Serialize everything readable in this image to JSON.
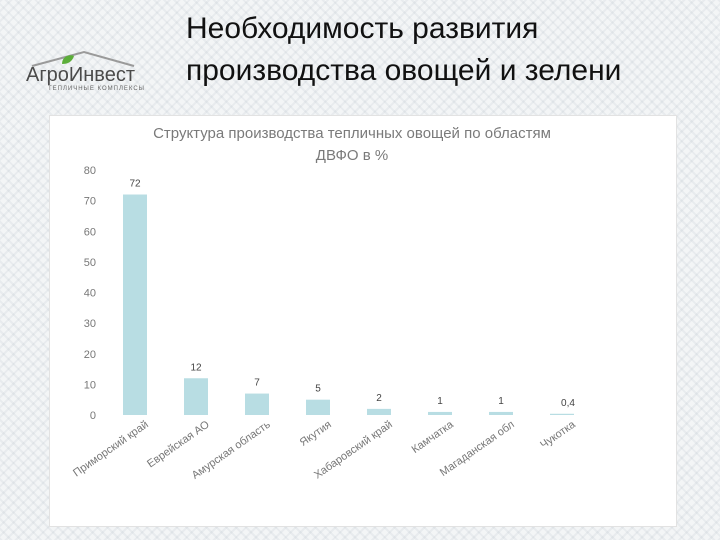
{
  "slide": {
    "title_line1": "Необходимость развития",
    "title_line2": "производства овощей и зелени"
  },
  "logo": {
    "text_part1": "Агро",
    "text_part2": "Инвест",
    "subtitle": "ТЕПЛИЧНЫЕ КОМПЛЕКСЫ",
    "leaf_color": "#5cae3a"
  },
  "chart_data": {
    "type": "bar",
    "title_line1": "Структура производства тепличных овощей по областям",
    "title_line2": "ДВФО в %",
    "categories": [
      "Приморский край",
      "Еврейская АО",
      "Амурская область",
      "Якутия",
      "Хабаровский край",
      "Камчатка",
      "Магаданская обл",
      "Чукотка"
    ],
    "values": [
      72,
      12,
      7,
      5,
      2,
      1,
      1,
      0.4
    ],
    "data_labels": [
      "72",
      "12",
      "7",
      "5",
      "2",
      "1",
      "1",
      "0,4"
    ],
    "ylim": [
      0,
      80
    ],
    "yticks": [
      "0",
      "10",
      "20",
      "30",
      "40",
      "50",
      "60",
      "70",
      "80"
    ],
    "xlabel": "",
    "ylabel": "",
    "grid": false,
    "bar_color": "#b8dde3"
  }
}
